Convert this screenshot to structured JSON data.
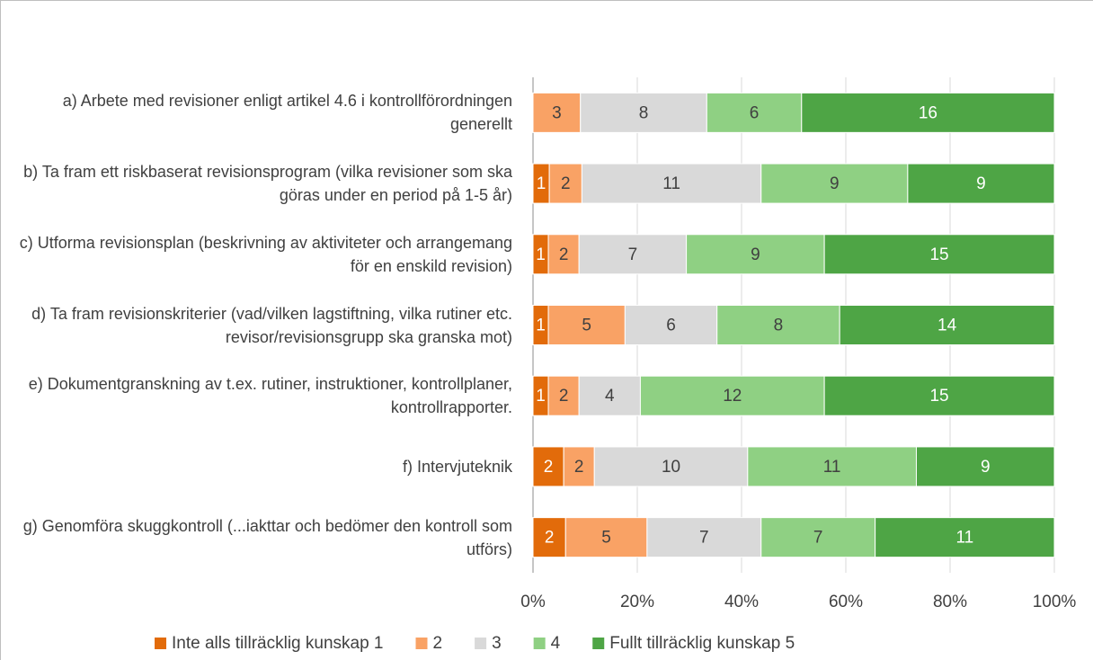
{
  "chart_data": {
    "type": "bar",
    "orientation": "horizontal",
    "stacking": "percent",
    "categories": [
      "a) Arbete med revisioner enligt artikel 4.6 i kontrollförordningen generellt",
      "b) Ta fram ett riskbaserat revisionsprogram (vilka revisioner som ska göras under en period på 1-5 år)",
      "c) Utforma revisionsplan (beskrivning av aktiviteter och arrangemang för en enskild revision)",
      "d) Ta fram revisionskriterier (vad/vilken lagstiftning, vilka rutiner etc. revisor/revisionsgrupp ska granska mot)",
      "e) Dokumentgranskning av t.ex. rutiner, instruktioner, kontrollplaner, kontrollrapporter.",
      "f) Intervjuteknik",
      "g) Genomföra skuggkontroll (...iakttar och bedömer den kontroll som utförs)"
    ],
    "series": [
      {
        "name": "Inte alls tillräcklig kunskap 1",
        "color": "#e26b0a",
        "values": [
          0,
          1,
          1,
          1,
          1,
          2,
          2
        ]
      },
      {
        "name": "2",
        "color": "#f9a265",
        "values": [
          3,
          2,
          2,
          5,
          2,
          2,
          5
        ]
      },
      {
        "name": "3",
        "color": "#d9d9d9",
        "values": [
          8,
          11,
          7,
          6,
          4,
          10,
          7
        ]
      },
      {
        "name": "4",
        "color": "#8fd083",
        "values": [
          6,
          9,
          9,
          8,
          12,
          11,
          7
        ]
      },
      {
        "name": "Fullt tillräcklig kunskap 5",
        "color": "#4ea545",
        "values": [
          16,
          9,
          15,
          14,
          15,
          9,
          11
        ]
      }
    ],
    "xlim": [
      0,
      100
    ],
    "xticks": [
      {
        "value": 0,
        "label": "0%"
      },
      {
        "value": 20,
        "label": "20%"
      },
      {
        "value": 40,
        "label": "40%"
      },
      {
        "value": 60,
        "label": "60%"
      },
      {
        "value": 80,
        "label": "80%"
      },
      {
        "value": 100,
        "label": "100%"
      }
    ],
    "grid": true,
    "legend": "bottom"
  }
}
